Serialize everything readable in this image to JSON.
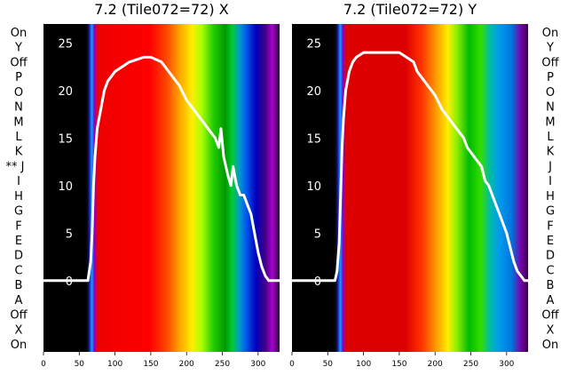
{
  "chart_data": [
    {
      "type": "heatmap",
      "title": "7.2 (Tile072=72) X",
      "xlim": [
        0,
        330
      ],
      "xticks": [
        0,
        50,
        100,
        150,
        200,
        250,
        300
      ],
      "ylim": [
        -7.5,
        27
      ],
      "yticks": [
        0,
        5,
        10,
        15,
        20,
        25
      ],
      "row_labels_top_to_bottom": [
        "On",
        "Y",
        "Off",
        "P",
        "O",
        "N",
        "M",
        "L",
        "K",
        "J",
        "I",
        "H",
        "G",
        "F",
        "E",
        "D",
        "C",
        "B",
        "A",
        "Off",
        "X",
        "On"
      ],
      "marked_row_prefix": "** ",
      "marked_row_index": 9,
      "line": {
        "x": [
          0,
          55,
          62,
          66,
          68,
          70,
          72,
          75,
          80,
          85,
          90,
          95,
          100,
          110,
          120,
          140,
          150,
          165,
          175,
          180,
          190,
          200,
          210,
          220,
          225,
          230,
          235,
          240,
          245,
          248,
          252,
          255,
          258,
          262,
          265,
          270,
          275,
          280,
          285,
          290,
          295,
          300,
          305,
          310,
          315,
          320,
          325,
          330
        ],
        "y": [
          0,
          0,
          0,
          2,
          5,
          10,
          13,
          16,
          18,
          20,
          21,
          21.5,
          22,
          22.5,
          23,
          23.5,
          23.5,
          23,
          22,
          21.5,
          20.5,
          19,
          18,
          17,
          16.5,
          16,
          15.5,
          15,
          14,
          16,
          13,
          12,
          11,
          10,
          12,
          10,
          9,
          9,
          8,
          7,
          5,
          3,
          1.5,
          0.5,
          0,
          0,
          0,
          0
        ]
      }
    },
    {
      "type": "heatmap",
      "title": "7.2 (Tile072=72) Y",
      "xlim": [
        0,
        330
      ],
      "xticks": [
        0,
        50,
        100,
        150,
        200,
        250,
        300
      ],
      "ylim": [
        -7.5,
        27
      ],
      "yticks": [
        0,
        5,
        10,
        15,
        20,
        25
      ],
      "row_labels_top_to_bottom": [
        "On",
        "Y",
        "Off",
        "P",
        "O",
        "N",
        "M",
        "L",
        "K",
        "J",
        "I",
        "H",
        "G",
        "F",
        "E",
        "D",
        "C",
        "B",
        "A",
        "Off",
        "X",
        "On"
      ],
      "line": {
        "x": [
          0,
          55,
          60,
          63,
          66,
          68,
          70,
          72,
          75,
          80,
          85,
          90,
          100,
          110,
          120,
          140,
          150,
          160,
          170,
          175,
          185,
          200,
          210,
          220,
          230,
          240,
          245,
          250,
          255,
          260,
          265,
          270,
          275,
          280,
          285,
          290,
          295,
          300,
          305,
          310,
          315,
          320,
          325,
          330
        ],
        "y": [
          0,
          0,
          0,
          1,
          4,
          9,
          14,
          17,
          20,
          22,
          23,
          23.5,
          24,
          24,
          24,
          24,
          24,
          23.5,
          23,
          22,
          21,
          19.5,
          18,
          17,
          16,
          15,
          14,
          13.5,
          13,
          12.5,
          12,
          10.5,
          10,
          9,
          8,
          7,
          6,
          5,
          3.5,
          2,
          1,
          0.5,
          0,
          0
        ]
      }
    }
  ]
}
